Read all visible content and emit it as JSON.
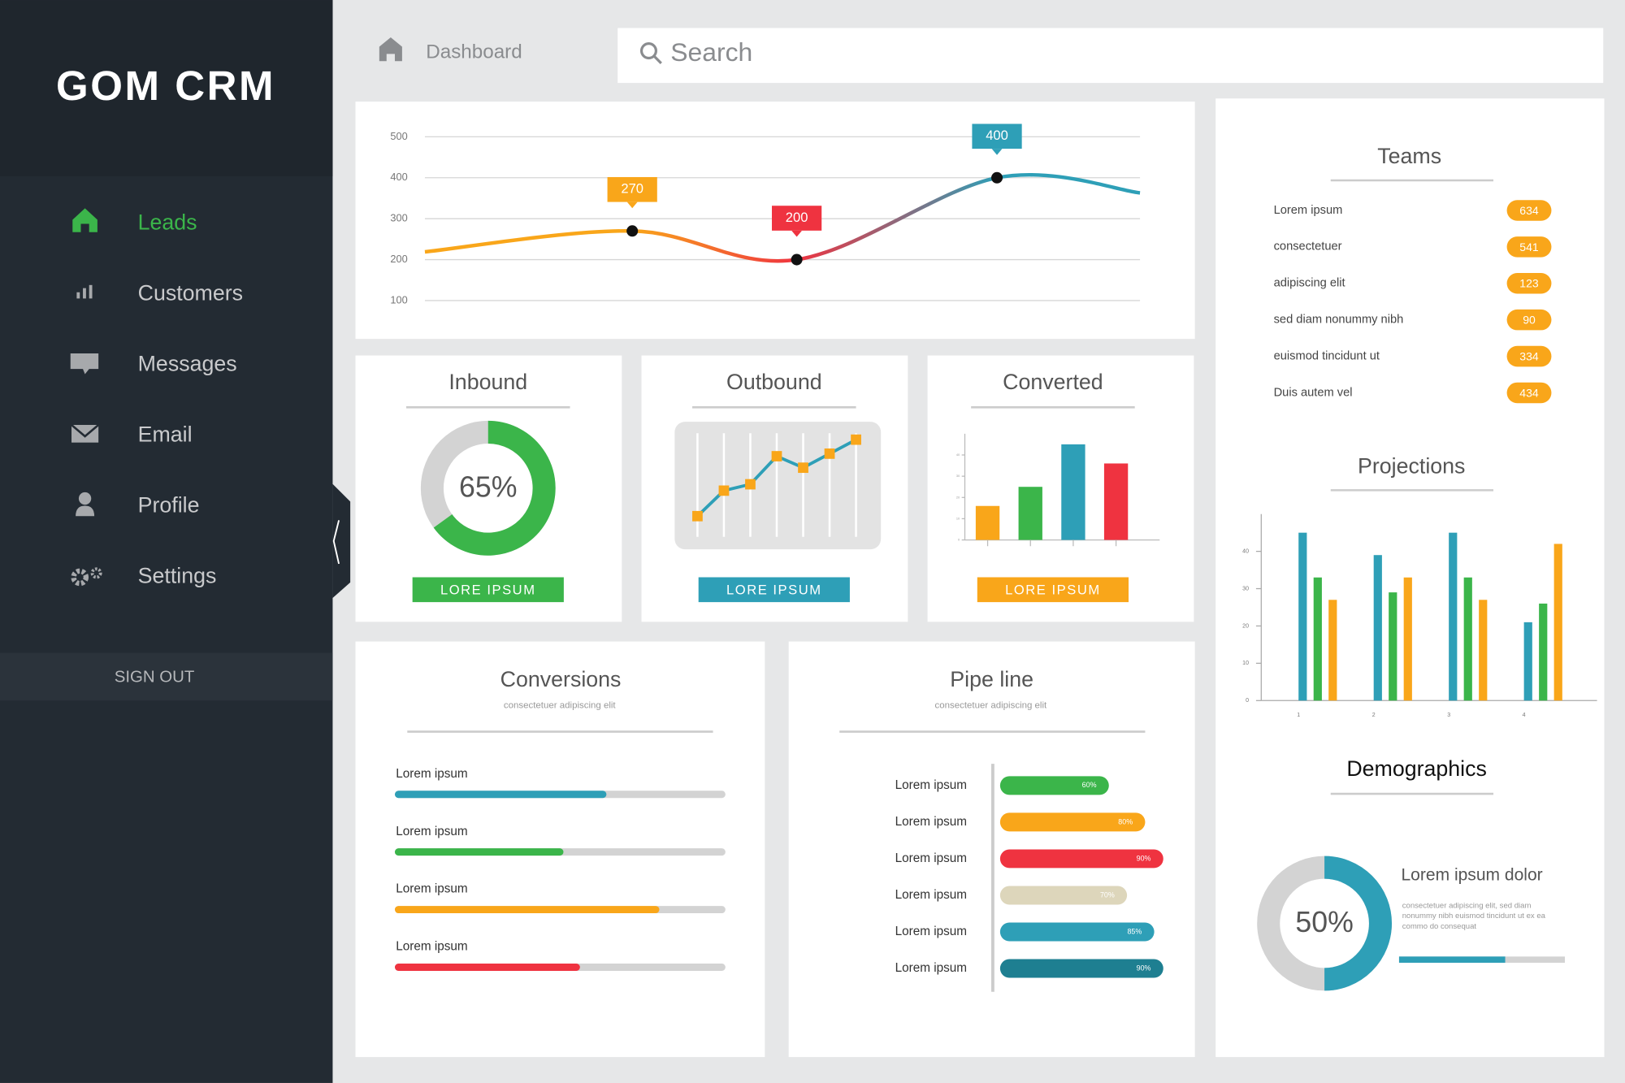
{
  "sidebar": {
    "brand": "GOM CRM",
    "menu": [
      "Leads",
      "Customers",
      "Messages",
      "Email",
      "Profile",
      "Settings"
    ],
    "sign_out": "SIGN OUT"
  },
  "topbar": {
    "breadcrumb": "Dashboard",
    "search": "Search"
  },
  "trend_chart": {
    "type": "line",
    "x": [
      0,
      29,
      52,
      80,
      100
    ],
    "xlim": [
      0,
      100
    ],
    "values": [
      219,
      270,
      200,
      400,
      363
    ],
    "ylim": [
      100,
      500
    ],
    "yticks": [
      100,
      200,
      300,
      400,
      500
    ],
    "grid": true,
    "point_colors": [
      "#f9a61a",
      "#f9a61a",
      "#ef3340",
      "#2e9fb7",
      "#2e9fb7"
    ]
  },
  "inbound": {
    "type": "donut",
    "title": "Inbound",
    "value": 65,
    "value_label": "65%",
    "color": "#3bb54a",
    "button": "LORE IPSUM"
  },
  "outbound": {
    "type": "line",
    "title": "Outbound",
    "values": [
      26,
      46,
      51,
      73,
      64,
      75,
      86
    ],
    "ylim": [
      0,
      100
    ],
    "color": "#2e9fb7",
    "marker_color": "#f9a61a",
    "button": "LORE IPSUM",
    "button_color": "#2e9fb7"
  },
  "converted": {
    "type": "bar",
    "title": "Converted",
    "values": [
      16,
      25,
      45,
      36
    ],
    "colors": [
      "#f9a61a",
      "#3bb54a",
      "#2e9fb7",
      "#ef3340"
    ],
    "ylim": [
      0,
      50
    ],
    "yticks": [
      0,
      10,
      20,
      30,
      40
    ],
    "button": "LORE IPSUM",
    "button_color": "#f9a61a"
  },
  "conversions": {
    "title": "Conversions",
    "subtitle": "consectetuer adipiscing elit",
    "items": [
      {
        "label": "Lorem ipsum",
        "value": 64,
        "color": "#2e9fb7"
      },
      {
        "label": "Lorem ipsum",
        "value": 51,
        "color": "#3bb54a"
      },
      {
        "label": "Lorem ipsum",
        "value": 80,
        "color": "#f9a61a"
      },
      {
        "label": "Lorem ipsum",
        "value": 56,
        "color": "#ef3340"
      }
    ]
  },
  "pipeline": {
    "title": "Pipe line",
    "subtitle": "consectetuer adipiscing elit",
    "items": [
      {
        "label": "Lorem ipsum",
        "value": 60,
        "value_label": "60%",
        "color": "#3bb54a"
      },
      {
        "label": "Lorem ipsum",
        "value": 80,
        "value_label": "80%",
        "color": "#f9a61a"
      },
      {
        "label": "Lorem ipsum",
        "value": 90,
        "value_label": "90%",
        "color": "#ef3340"
      },
      {
        "label": "Lorem ipsum",
        "value": 70,
        "value_label": "70%",
        "color": "#ddd6bb"
      },
      {
        "label": "Lorem ipsum",
        "value": 85,
        "value_label": "85%",
        "color": "#2e9fb7"
      },
      {
        "label": "Lorem ipsum",
        "value": 90,
        "value_label": "90%",
        "color": "#1e7f91"
      }
    ]
  },
  "teams": {
    "title": "Teams",
    "color": "#f9a61a",
    "rows": [
      {
        "label": "Lorem ipsum",
        "value": 634
      },
      {
        "label": "consectetuer",
        "value": 541
      },
      {
        "label": "adipiscing elit",
        "value": 123
      },
      {
        "label": "sed diam nonummy nibh",
        "value": 90
      },
      {
        "label": "euismod tincidunt ut",
        "value": 334
      },
      {
        "label": "Duis autem vel",
        "value": 434
      }
    ]
  },
  "projections": {
    "type": "bar",
    "title": "Projections",
    "categories": [
      "1",
      "2",
      "3",
      "4"
    ],
    "series": [
      {
        "color": "#2e9fb7",
        "values": [
          45,
          39,
          45,
          21
        ]
      },
      {
        "color": "#3bb54a",
        "values": [
          33,
          29,
          33,
          26
        ]
      },
      {
        "color": "#f9a61a",
        "values": [
          27,
          33,
          27,
          42
        ]
      }
    ],
    "ylim": [
      0,
      50
    ],
    "yticks": [
      0,
      10,
      20,
      30,
      40
    ]
  },
  "demographics": {
    "type": "donut",
    "title": "Demographics",
    "value": 50,
    "value_label": "50%",
    "color": "#2e9fb7",
    "heading": "Lorem ipsum dolor",
    "text": [
      "consectetuer adipiscing elit, sed diam",
      "nonummy nibh euismod tincidunt ut  ex ea",
      "commo do consequat"
    ],
    "progress": 64
  }
}
